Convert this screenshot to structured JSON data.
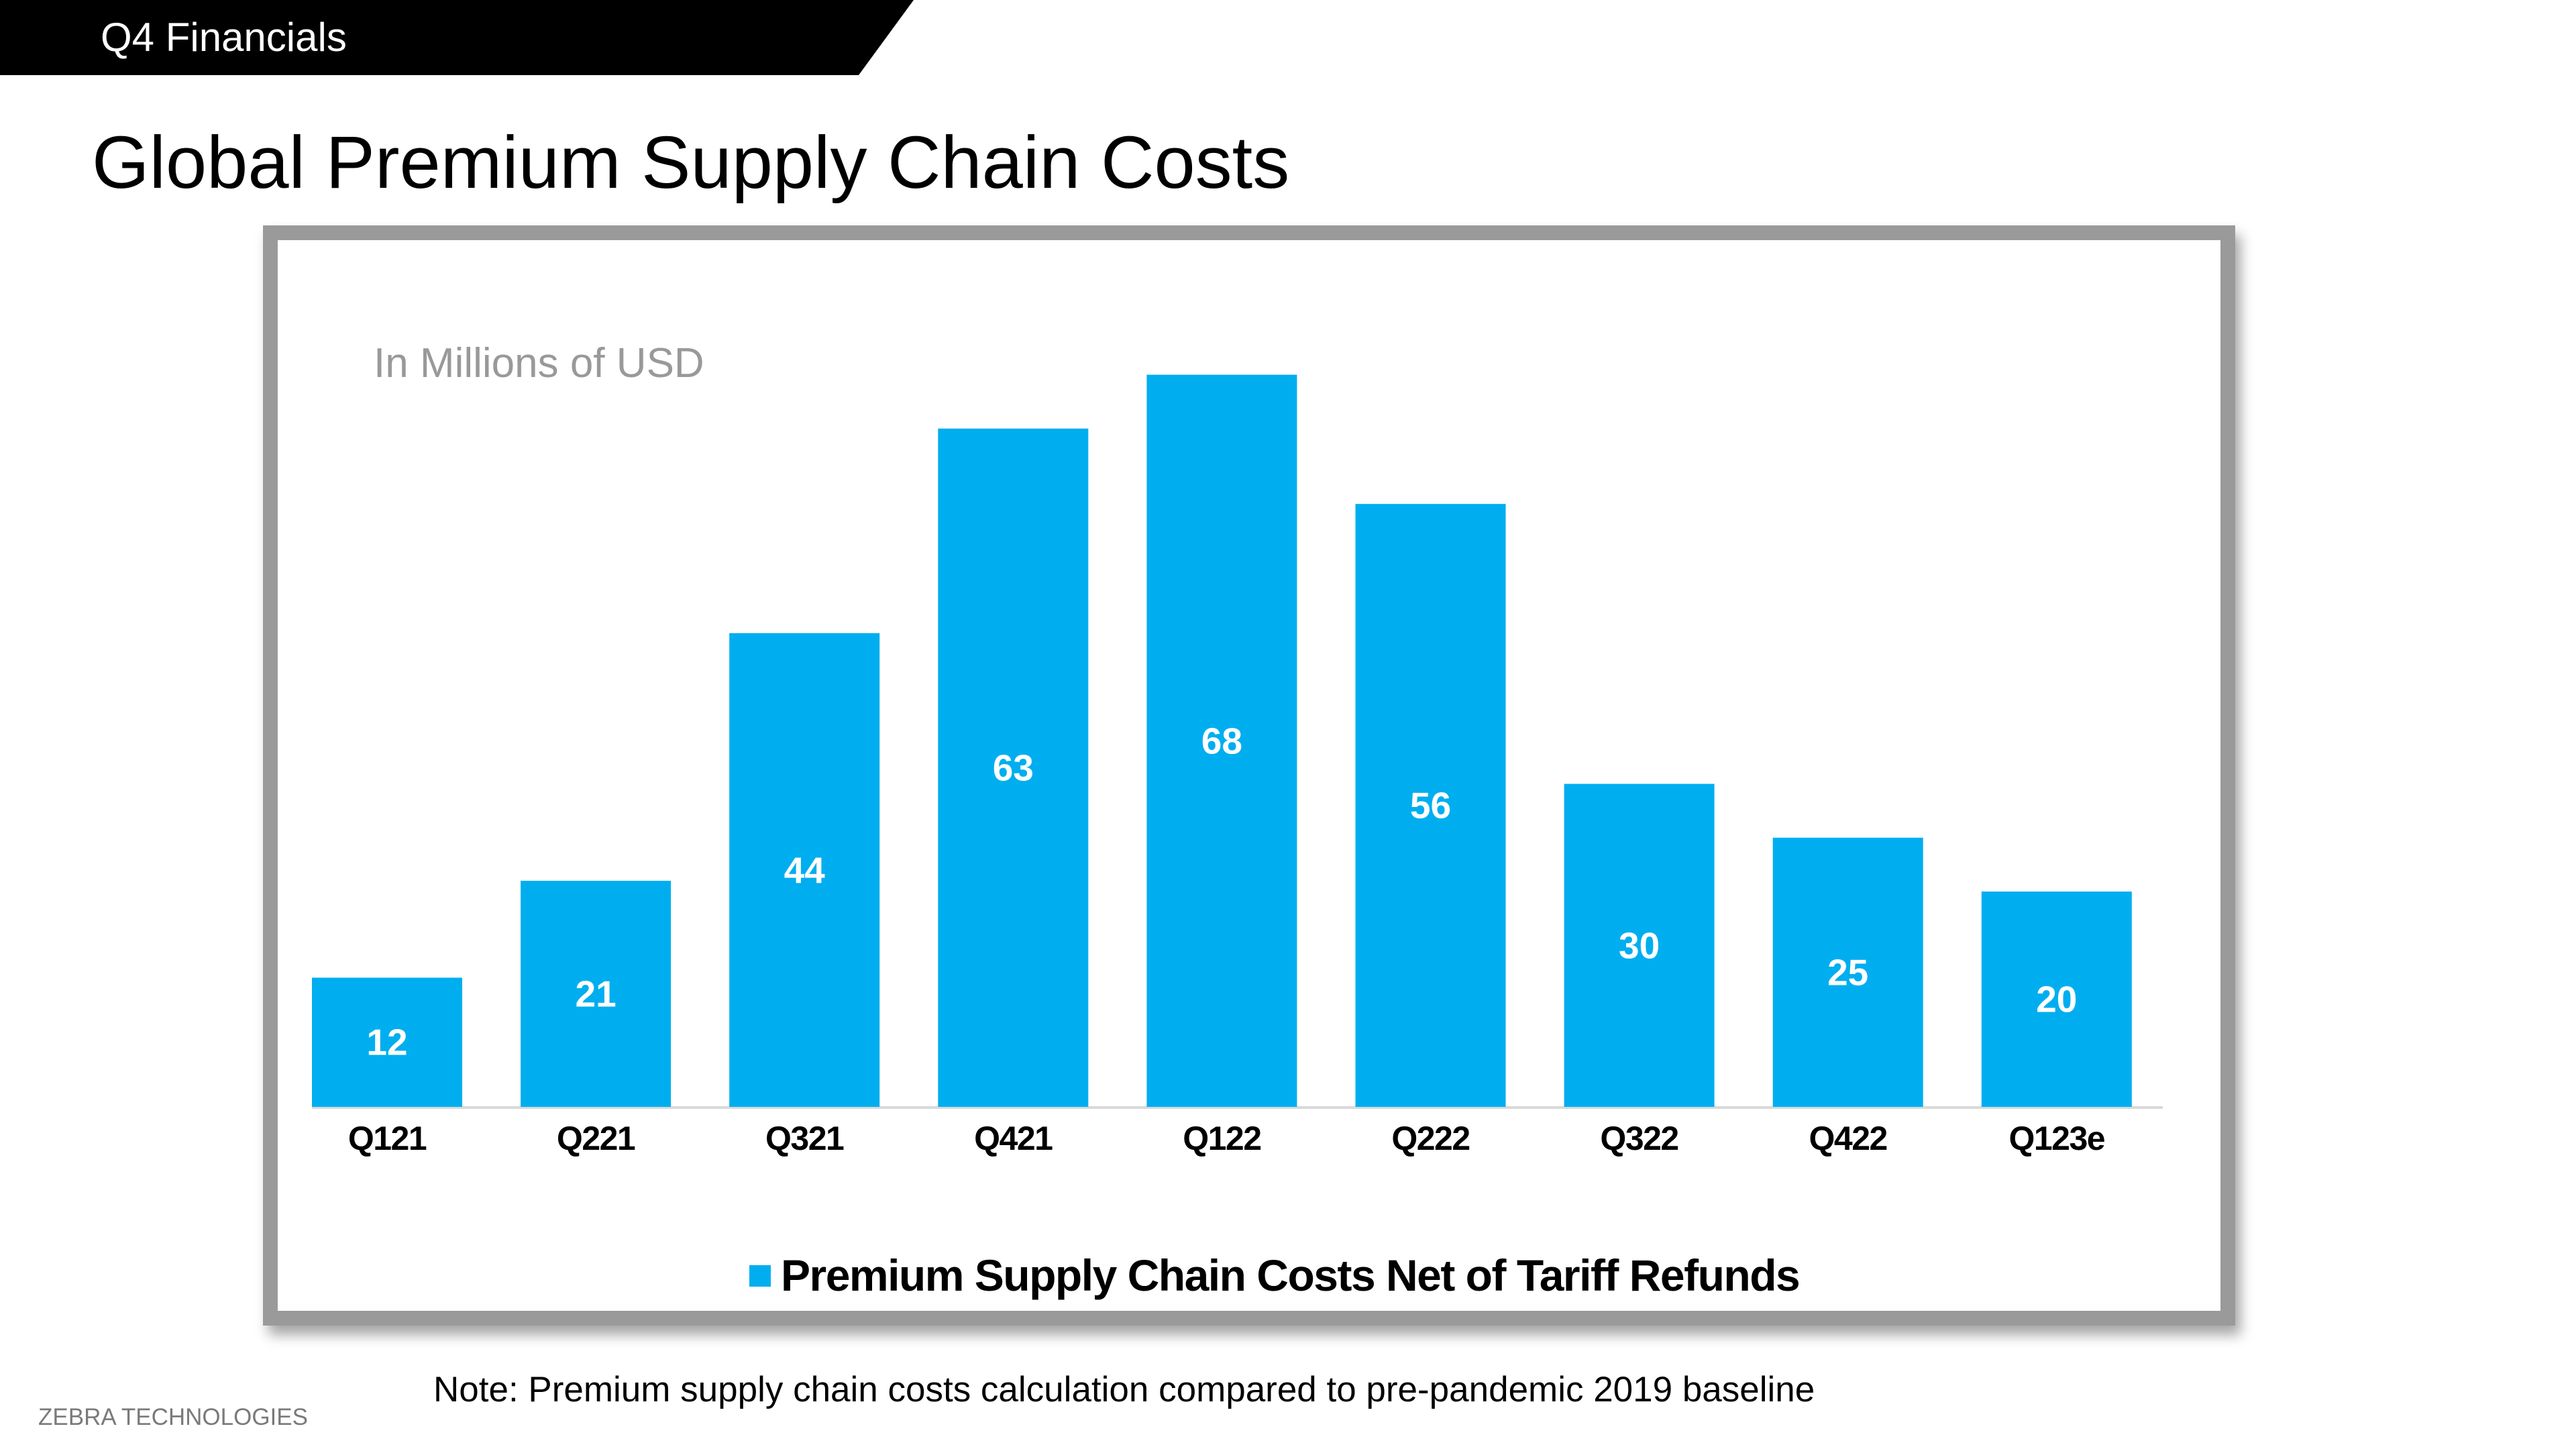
{
  "header": {
    "section": "Q4 Financials",
    "title": "Global Premium Supply Chain Costs"
  },
  "chart_data": {
    "type": "bar",
    "title": "",
    "subtitle": "In Millions of USD",
    "categories": [
      "Q121",
      "Q221",
      "Q321",
      "Q421",
      "Q122",
      "Q222",
      "Q322",
      "Q422",
      "Q123e"
    ],
    "series": [
      {
        "name": "Premium Supply Chain Costs Net of Tariff Refunds",
        "values": [
          12,
          21,
          44,
          63,
          68,
          56,
          30,
          25,
          20
        ],
        "color": "#00AEEF"
      }
    ],
    "data_labels": true,
    "ylim": [
      0,
      70
    ],
    "grid": false,
    "legend": "bottom",
    "xlabel": "",
    "ylabel": ""
  },
  "footer": {
    "note": "Note: Premium supply chain costs calculation compared to pre-pandemic 2019 baseline",
    "brand": "ZEBRA TECHNOLOGIES"
  }
}
